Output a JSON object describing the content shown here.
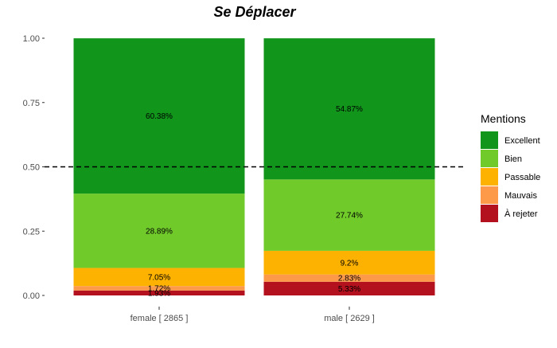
{
  "chart_data": {
    "type": "bar",
    "stacked": true,
    "title": "Se Déplacer",
    "xlabel": "",
    "ylabel": "",
    "ylim": [
      0,
      1
    ],
    "y_ticks": [
      "0.00",
      "0.25",
      "0.50",
      "0.75",
      "1.00"
    ],
    "y_tick_values": [
      0,
      0.25,
      0.5,
      0.75,
      1.0
    ],
    "categories": [
      "female [ 2865 ]",
      "male [ 2629 ]"
    ],
    "reference_line": 0.5,
    "legend": {
      "title": "Mentions",
      "placement": "right"
    },
    "grid": false,
    "series": [
      {
        "name": "À rejeter",
        "color": "#b2111d",
        "values": [
          0.0193,
          0.0533
        ],
        "labels": [
          "1.93%",
          "5.33%"
        ]
      },
      {
        "name": "Mauvais",
        "color": "#fd9a4a",
        "values": [
          0.0172,
          0.0283
        ],
        "labels": [
          "1.72%",
          "2.83%"
        ]
      },
      {
        "name": "Passable",
        "color": "#fdb100",
        "values": [
          0.0705,
          0.092
        ],
        "labels": [
          "7.05%",
          "9.2%"
        ]
      },
      {
        "name": "Bien",
        "color": "#6fca2a",
        "values": [
          0.2889,
          0.2774
        ],
        "labels": [
          "28.89%",
          "27.74%"
        ]
      },
      {
        "name": "Excellent",
        "color": "#11951b",
        "values": [
          0.6038,
          0.5487
        ],
        "labels": [
          "60.38%",
          "54.87%"
        ]
      }
    ],
    "legend_order": [
      "Excellent",
      "Bien",
      "Passable",
      "Mauvais",
      "À rejeter"
    ]
  }
}
